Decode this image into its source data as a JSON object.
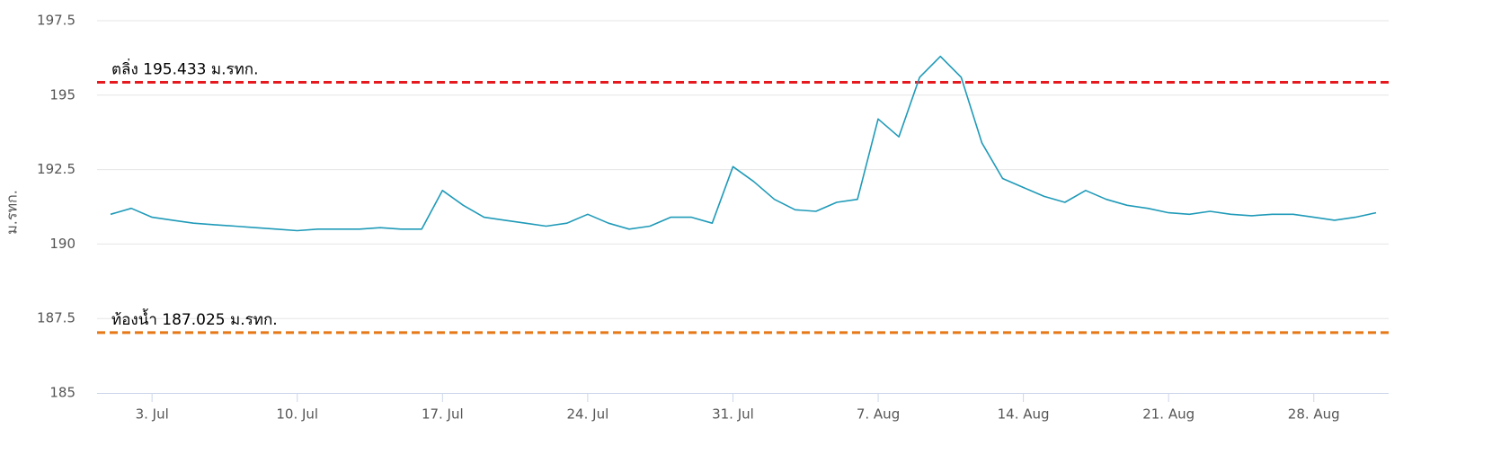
{
  "chart_data": {
    "type": "line",
    "y_label": "ม.รทก.",
    "categories": [
      "1. Jul",
      "2. Jul",
      "3. Jul",
      "4. Jul",
      "5. Jul",
      "6. Jul",
      "7. Jul",
      "8. Jul",
      "9. Jul",
      "10. Jul",
      "11. Jul",
      "12. Jul",
      "13. Jul",
      "14. Jul",
      "15. Jul",
      "16. Jul",
      "17. Jul",
      "18. Jul",
      "19. Jul",
      "20. Jul",
      "21. Jul",
      "22. Jul",
      "23. Jul",
      "24. Jul",
      "25. Jul",
      "26. Jul",
      "27. Jul",
      "28. Jul",
      "29. Jul",
      "30. Jul",
      "31. Jul",
      "1. Aug",
      "2. Aug",
      "3. Aug",
      "4. Aug",
      "5. Aug",
      "6. Aug",
      "7. Aug",
      "8. Aug",
      "9. Aug",
      "10. Aug",
      "11. Aug",
      "12. Aug",
      "13. Aug",
      "14. Aug",
      "15. Aug",
      "16. Aug",
      "17. Aug",
      "18. Aug",
      "19. Aug",
      "20. Aug",
      "21. Aug",
      "22. Aug",
      "23. Aug",
      "24. Aug",
      "25. Aug",
      "26. Aug",
      "27. Aug",
      "28. Aug",
      "29. Aug",
      "30. Aug",
      "31. Aug"
    ],
    "values": [
      191.0,
      191.2,
      190.9,
      190.8,
      190.7,
      190.65,
      190.6,
      190.55,
      190.5,
      190.45,
      190.5,
      190.5,
      190.5,
      190.55,
      190.5,
      190.5,
      191.8,
      191.3,
      190.9,
      190.8,
      190.7,
      190.6,
      190.7,
      191.0,
      190.7,
      190.5,
      190.6,
      190.9,
      190.9,
      190.7,
      192.6,
      192.1,
      191.5,
      191.15,
      191.1,
      191.4,
      191.5,
      194.2,
      193.6,
      195.6,
      196.3,
      195.6,
      193.4,
      192.2,
      191.9,
      191.6,
      191.4,
      191.8,
      191.5,
      191.3,
      191.2,
      191.05,
      191.0,
      191.1,
      191.0,
      190.95,
      191.0,
      191.0,
      190.9,
      190.8,
      190.9,
      191.05
    ],
    "color": "#1f9ab8",
    "ylim": [
      185,
      197.5
    ],
    "yticks": [
      185,
      187.5,
      190,
      192.5,
      195,
      197.5
    ],
    "xticks": [
      "3. Jul",
      "10. Jul",
      "17. Jul",
      "24. Jul",
      "31. Jul",
      "7. Aug",
      "14. Aug",
      "21. Aug",
      "28. Aug"
    ],
    "grid": true,
    "annotations": [
      {
        "label": "ตลิ่ง 195.433 ม.รทก.",
        "value": 195.433,
        "color": "#e5191e"
      },
      {
        "label": "ท้องน้ำ 187.025 ม.รทก.",
        "value": 187.025,
        "color": "#e67817"
      }
    ]
  }
}
